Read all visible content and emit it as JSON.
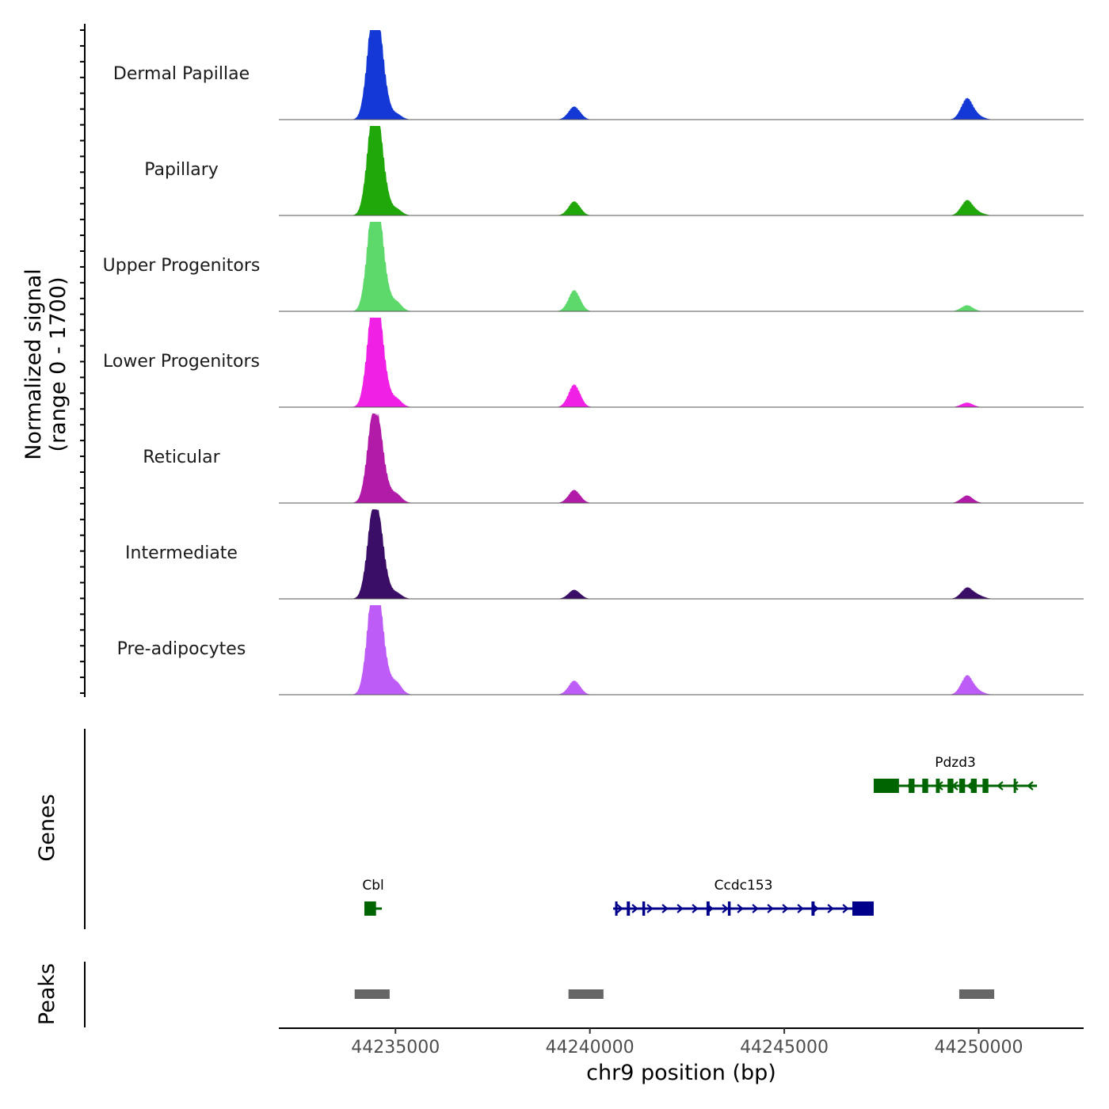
{
  "chart_data": {
    "type": "area",
    "region": {
      "chrom": "chr9",
      "start": 44232000,
      "end": 44252700
    },
    "coverage": {
      "ylabel_line1": "Normalized signal",
      "ylabel_line2": "(range 0 - 1700)",
      "ylim": [
        0,
        1700
      ],
      "tracks": [
        {
          "name": "Dermal Papillae",
          "color": "#1338d6",
          "peaks": [
            {
              "pos": 44234400,
              "height": 1700
            },
            {
              "pos": 44234600,
              "height": 1200
            },
            {
              "pos": 44235000,
              "height": 120
            },
            {
              "pos": 44239600,
              "height": 260
            },
            {
              "pos": 44249700,
              "height": 420
            },
            {
              "pos": 44250000,
              "height": 60
            }
          ]
        },
        {
          "name": "Papillary",
          "color": "#20a80a",
          "peaks": [
            {
              "pos": 44234400,
              "height": 1650
            },
            {
              "pos": 44234600,
              "height": 1150
            },
            {
              "pos": 44235000,
              "height": 140
            },
            {
              "pos": 44239600,
              "height": 280
            },
            {
              "pos": 44249700,
              "height": 300
            },
            {
              "pos": 44250000,
              "height": 50
            }
          ]
        },
        {
          "name": "Upper Progenitors",
          "color": "#5dd86a",
          "peaks": [
            {
              "pos": 44234400,
              "height": 1700
            },
            {
              "pos": 44234600,
              "height": 1300
            },
            {
              "pos": 44235000,
              "height": 200
            },
            {
              "pos": 44239600,
              "height": 420
            },
            {
              "pos": 44249700,
              "height": 120
            }
          ]
        },
        {
          "name": "Lower Progenitors",
          "color": "#f020e4",
          "peaks": [
            {
              "pos": 44234400,
              "height": 1650
            },
            {
              "pos": 44234600,
              "height": 1250
            },
            {
              "pos": 44235000,
              "height": 180
            },
            {
              "pos": 44239600,
              "height": 450
            },
            {
              "pos": 44249700,
              "height": 90
            }
          ]
        },
        {
          "name": "Reticular",
          "color": "#b11ba8",
          "peaks": [
            {
              "pos": 44234400,
              "height": 1400
            },
            {
              "pos": 44234600,
              "height": 1000
            },
            {
              "pos": 44235000,
              "height": 190
            },
            {
              "pos": 44239600,
              "height": 260
            },
            {
              "pos": 44249700,
              "height": 150
            }
          ]
        },
        {
          "name": "Intermediate",
          "color": "#3a0d66",
          "peaks": [
            {
              "pos": 44234400,
              "height": 1400
            },
            {
              "pos": 44234600,
              "height": 1050
            },
            {
              "pos": 44235000,
              "height": 130
            },
            {
              "pos": 44239600,
              "height": 180
            },
            {
              "pos": 44249700,
              "height": 220
            },
            {
              "pos": 44250000,
              "height": 60
            }
          ]
        },
        {
          "name": "Pre-adipocytes",
          "color": "#bd5cf7",
          "peaks": [
            {
              "pos": 44234400,
              "height": 1700
            },
            {
              "pos": 44234600,
              "height": 1250
            },
            {
              "pos": 44235000,
              "height": 260
            },
            {
              "pos": 44239600,
              "height": 280
            },
            {
              "pos": 44249700,
              "height": 380
            },
            {
              "pos": 44250000,
              "height": 60
            }
          ]
        }
      ]
    },
    "genes": {
      "ylabel": "Genes",
      "items": [
        {
          "name": "Pdzd3",
          "start": 44247300,
          "end": 44251500,
          "strand": "-",
          "color": "#006400",
          "row": 0,
          "exons": [
            [
              44247300,
              44247950
            ],
            [
              44248200,
              44248350
            ],
            [
              44248550,
              44248700
            ],
            [
              44248900,
              44249000
            ],
            [
              44249200,
              44249350
            ],
            [
              44249500,
              44249650
            ],
            [
              44249800,
              44249950
            ],
            [
              44250100,
              44250250
            ],
            [
              44250900,
              44250950
            ]
          ]
        },
        {
          "name": "Cbl",
          "start": 44234200,
          "end": 44234650,
          "strand": "-",
          "color": "#006400",
          "row": 1,
          "exons": [
            [
              44234200,
              44234500
            ]
          ]
        },
        {
          "name": "Ccdc153",
          "start": 44240600,
          "end": 44247300,
          "strand": "+",
          "color": "#00008b",
          "row": 1,
          "exons": [
            [
              44240650,
              44240700
            ],
            [
              44240950,
              44241030
            ],
            [
              44241350,
              44241420
            ],
            [
              44243000,
              44243080
            ],
            [
              44243550,
              44243620
            ],
            [
              44245700,
              44245780
            ],
            [
              44246750,
              44247300
            ]
          ]
        }
      ]
    },
    "peaks": {
      "ylabel": "Peaks",
      "color": "#666666",
      "ranges": [
        [
          44233950,
          44234850
        ],
        [
          44239450,
          44240350
        ],
        [
          44249500,
          44250400
        ]
      ]
    },
    "xaxis": {
      "label": "chr9 position (bp)",
      "ticks": [
        {
          "value": 44235000,
          "label": "44235000"
        },
        {
          "value": 44240000,
          "label": "44240000"
        },
        {
          "value": 44245000,
          "label": "44245000"
        },
        {
          "value": 44250000,
          "label": "44250000"
        }
      ]
    }
  }
}
